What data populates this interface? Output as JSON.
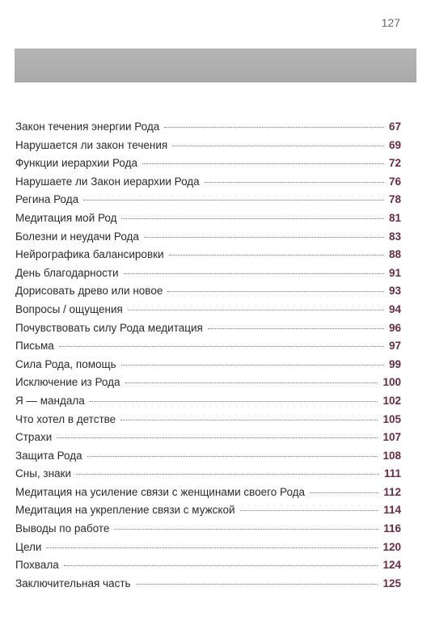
{
  "page": {
    "number": "127"
  },
  "toc": [
    {
      "title": "Закон течения энергии Рода",
      "page": "67"
    },
    {
      "title": "Нарушается ли закон течения",
      "page": "69"
    },
    {
      "title": "Функции иерархии Рода",
      "page": "72"
    },
    {
      "title": "Нарушаете ли Закон иерархии Рода",
      "page": "76"
    },
    {
      "title": "Регина Рода",
      "page": "78"
    },
    {
      "title": "Медитация мой Род",
      "page": "81"
    },
    {
      "title": "Болезни и неудачи Рода",
      "page": "83"
    },
    {
      "title": "Нейрографика балансировки",
      "page": "88"
    },
    {
      "title": "День благодарности",
      "page": "91"
    },
    {
      "title": "Дорисовать древо или новое",
      "page": "93"
    },
    {
      "title": "Вопросы / ощущения",
      "page": "94"
    },
    {
      "title": "Почувствовать силу Рода медитация",
      "page": "96"
    },
    {
      "title": "Письма",
      "page": "97"
    },
    {
      "title": "Сила Рода, помощь",
      "page": "99"
    },
    {
      "title": "Исключение из Рода",
      "page": "100"
    },
    {
      "title": "Я — мандала",
      "page": "102"
    },
    {
      "title": "Что хотел в детстве",
      "page": "105"
    },
    {
      "title": "Страхи",
      "page": "107"
    },
    {
      "title": "Защита Рода",
      "page": "108"
    },
    {
      "title": "Сны, знаки",
      "page": "111"
    },
    {
      "title": "Медитация на усиление связи с женщинами своего Рода",
      "page": "112"
    },
    {
      "title": "Медитация на укрепление связи с мужской",
      "page": "114"
    },
    {
      "title": "Выводы по работе",
      "page": "116"
    },
    {
      "title": "Цели",
      "page": "120"
    },
    {
      "title": "Похвала",
      "page": "124"
    },
    {
      "title": "Заключительная часть",
      "page": "125"
    }
  ]
}
